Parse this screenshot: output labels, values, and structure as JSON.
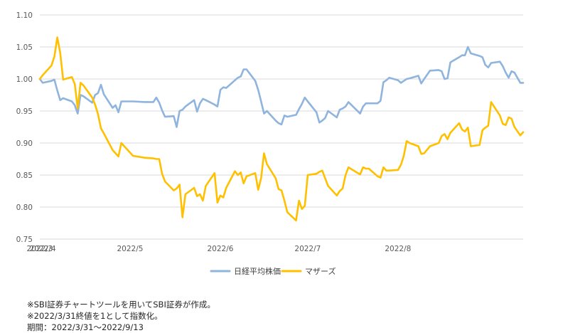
{
  "chart_data": {
    "type": "line",
    "title": "",
    "xlabel": "",
    "ylabel": "",
    "ylim": [
      0.75,
      1.1
    ],
    "yticks": [
      "1.10",
      "1.05",
      "1.00",
      "0.95",
      "0.90",
      "0.85",
      "0.80",
      "0.75"
    ],
    "xticks": [
      "2022/3",
      "2022/4",
      "2022/5",
      "2022/6",
      "2022/7",
      "2022/8"
    ],
    "grid": "horizontal",
    "legend_position": "bottom",
    "series": [
      {
        "name": "日経平均株価",
        "color": "#8FB4DE",
        "points": [
          [
            "2022/3/31",
            1.0
          ],
          [
            "2022/4/1",
            0.994
          ],
          [
            "2022/4/4",
            0.997
          ],
          [
            "2022/4/5",
            0.999
          ],
          [
            "2022/4/6",
            0.982
          ],
          [
            "2022/4/7",
            0.967
          ],
          [
            "2022/4/8",
            0.97
          ],
          [
            "2022/4/11",
            0.965
          ],
          [
            "2022/4/12",
            0.959
          ],
          [
            "2022/4/13",
            0.946
          ],
          [
            "2022/4/14",
            0.975
          ],
          [
            "2022/4/15",
            0.973
          ],
          [
            "2022/4/18",
            0.963
          ],
          [
            "2022/4/19",
            0.975
          ],
          [
            "2022/4/20",
            0.978
          ],
          [
            "2022/4/21",
            0.991
          ],
          [
            "2022/4/22",
            0.976
          ],
          [
            "2022/4/25",
            0.955
          ],
          [
            "2022/4/26",
            0.959
          ],
          [
            "2022/4/27",
            0.948
          ],
          [
            "2022/4/28",
            0.965
          ],
          [
            "2022/5/2",
            0.965
          ],
          [
            "2022/5/6",
            0.964
          ],
          [
            "2022/5/9",
            0.964
          ],
          [
            "2022/5/10",
            0.971
          ],
          [
            "2022/5/11",
            0.963
          ],
          [
            "2022/5/12",
            0.951
          ],
          [
            "2022/5/13",
            0.941
          ],
          [
            "2022/5/16",
            0.942
          ],
          [
            "2022/5/17",
            0.925
          ],
          [
            "2022/5/18",
            0.95
          ],
          [
            "2022/5/19",
            0.952
          ],
          [
            "2022/5/20",
            0.957
          ],
          [
            "2022/5/23",
            0.967
          ],
          [
            "2022/5/24",
            0.949
          ],
          [
            "2022/5/25",
            0.962
          ],
          [
            "2022/5/26",
            0.969
          ],
          [
            "2022/5/27",
            0.967
          ],
          [
            "2022/5/30",
            0.96
          ],
          [
            "2022/5/31",
            0.957
          ],
          [
            "2022/6/1",
            0.983
          ],
          [
            "2022/6/2",
            0.987
          ],
          [
            "2022/6/3",
            0.986
          ],
          [
            "2022/6/6",
            0.998
          ],
          [
            "2022/6/7",
            1.002
          ],
          [
            "2022/6/8",
            1.004
          ],
          [
            "2022/6/9",
            1.015
          ],
          [
            "2022/6/10",
            1.015
          ],
          [
            "2022/6/13",
            0.997
          ],
          [
            "2022/6/14",
            0.983
          ],
          [
            "2022/6/15",
            0.965
          ],
          [
            "2022/6/16",
            0.946
          ],
          [
            "2022/6/17",
            0.95
          ],
          [
            "2022/6/20",
            0.935
          ],
          [
            "2022/6/21",
            0.931
          ],
          [
            "2022/6/22",
            0.929
          ],
          [
            "2022/6/23",
            0.943
          ],
          [
            "2022/6/24",
            0.941
          ],
          [
            "2022/6/27",
            0.944
          ],
          [
            "2022/6/28",
            0.953
          ],
          [
            "2022/6/29",
            0.961
          ],
          [
            "2022/6/30",
            0.971
          ],
          [
            "2022/7/1",
            0.965
          ],
          [
            "2022/7/4",
            0.948
          ],
          [
            "2022/7/5",
            0.932
          ],
          [
            "2022/7/6",
            0.935
          ],
          [
            "2022/7/7",
            0.939
          ],
          [
            "2022/7/8",
            0.95
          ],
          [
            "2022/7/11",
            0.94
          ],
          [
            "2022/7/12",
            0.952
          ],
          [
            "2022/7/13",
            0.954
          ],
          [
            "2022/7/14",
            0.957
          ],
          [
            "2022/7/15",
            0.964
          ],
          [
            "2022/7/19",
            0.946
          ],
          [
            "2022/7/20",
            0.957
          ],
          [
            "2022/7/21",
            0.962
          ],
          [
            "2022/7/22",
            0.962
          ],
          [
            "2022/7/25",
            0.962
          ],
          [
            "2022/7/26",
            0.966
          ],
          [
            "2022/7/27",
            0.995
          ],
          [
            "2022/7/28",
            0.998
          ],
          [
            "2022/7/29",
            1.002
          ],
          [
            "2022/8/1",
            0.998
          ],
          [
            "2022/8/2",
            0.994
          ],
          [
            "2022/8/3",
            0.997
          ],
          [
            "2022/8/4",
            1.0
          ],
          [
            "2022/8/5",
            1.001
          ],
          [
            "2022/8/8",
            1.005
          ],
          [
            "2022/8/9",
            0.993
          ],
          [
            "2022/8/10",
            1.0
          ],
          [
            "2022/8/12",
            1.013
          ],
          [
            "2022/8/15",
            1.014
          ],
          [
            "2022/8/16",
            1.012
          ],
          [
            "2022/8/17",
            1.0
          ],
          [
            "2022/8/18",
            1.001
          ],
          [
            "2022/8/19",
            1.026
          ],
          [
            "2022/8/22",
            1.034
          ],
          [
            "2022/8/23",
            1.037
          ],
          [
            "2022/8/24",
            1.037
          ],
          [
            "2022/8/25",
            1.05
          ],
          [
            "2022/8/26",
            1.04
          ],
          [
            "2022/8/29",
            1.036
          ],
          [
            "2022/8/30",
            1.034
          ],
          [
            "2022/8/31",
            1.022
          ],
          [
            "2022/9/1",
            1.018
          ],
          [
            "2022/9/2",
            1.025
          ],
          [
            "2022/9/5",
            1.027
          ],
          [
            "2022/9/6",
            1.02
          ],
          [
            "2022/9/7",
            1.01
          ],
          [
            "2022/9/8",
            1.002
          ],
          [
            "2022/9/9",
            1.012
          ],
          [
            "2022/9/10",
            1.01
          ],
          [
            "2022/9/12",
            0.994
          ],
          [
            "2022/9/13",
            0.994
          ]
        ]
      },
      {
        "name": "マザーズ",
        "color": "#FFC000",
        "points": [
          [
            "2022/3/31",
            1.0
          ],
          [
            "2022/4/1",
            1.006
          ],
          [
            "2022/4/4",
            1.021
          ],
          [
            "2022/4/5",
            1.035
          ],
          [
            "2022/4/6",
            1.065
          ],
          [
            "2022/4/7",
            1.041
          ],
          [
            "2022/4/8",
            0.999
          ],
          [
            "2022/4/11",
            1.003
          ],
          [
            "2022/4/12",
            0.992
          ],
          [
            "2022/4/13",
            0.954
          ],
          [
            "2022/4/14",
            0.994
          ],
          [
            "2022/4/15",
            0.99
          ],
          [
            "2022/4/18",
            0.971
          ],
          [
            "2022/4/19",
            0.96
          ],
          [
            "2022/4/20",
            0.945
          ],
          [
            "2022/4/21",
            0.923
          ],
          [
            "2022/4/22",
            0.915
          ],
          [
            "2022/4/25",
            0.889
          ],
          [
            "2022/4/26",
            0.884
          ],
          [
            "2022/4/27",
            0.879
          ],
          [
            "2022/4/28",
            0.9
          ],
          [
            "2022/5/2",
            0.88
          ],
          [
            "2022/5/6",
            0.877
          ],
          [
            "2022/5/9",
            0.876
          ],
          [
            "2022/5/10",
            0.875
          ],
          [
            "2022/5/11",
            0.875
          ],
          [
            "2022/5/12",
            0.852
          ],
          [
            "2022/5/13",
            0.84
          ],
          [
            "2022/5/16",
            0.826
          ],
          [
            "2022/5/17",
            0.829
          ],
          [
            "2022/5/18",
            0.835
          ],
          [
            "2022/5/19",
            0.784
          ],
          [
            "2022/5/20",
            0.82
          ],
          [
            "2022/5/23",
            0.83
          ],
          [
            "2022/5/24",
            0.817
          ],
          [
            "2022/5/25",
            0.82
          ],
          [
            "2022/5/26",
            0.81
          ],
          [
            "2022/5/27",
            0.833
          ],
          [
            "2022/5/30",
            0.853
          ],
          [
            "2022/5/31",
            0.807
          ],
          [
            "2022/6/1",
            0.818
          ],
          [
            "2022/6/2",
            0.815
          ],
          [
            "2022/6/3",
            0.83
          ],
          [
            "2022/6/6",
            0.856
          ],
          [
            "2022/6/7",
            0.85
          ],
          [
            "2022/6/8",
            0.854
          ],
          [
            "2022/6/9",
            0.837
          ],
          [
            "2022/6/10",
            0.848
          ],
          [
            "2022/6/13",
            0.853
          ],
          [
            "2022/6/14",
            0.827
          ],
          [
            "2022/6/15",
            0.845
          ],
          [
            "2022/6/16",
            0.884
          ],
          [
            "2022/6/17",
            0.867
          ],
          [
            "2022/6/20",
            0.845
          ],
          [
            "2022/6/21",
            0.828
          ],
          [
            "2022/6/22",
            0.826
          ],
          [
            "2022/6/23",
            0.81
          ],
          [
            "2022/6/24",
            0.792
          ],
          [
            "2022/6/27",
            0.779
          ],
          [
            "2022/6/28",
            0.81
          ],
          [
            "2022/6/29",
            0.797
          ],
          [
            "2022/6/30",
            0.802
          ],
          [
            "2022/7/1",
            0.85
          ],
          [
            "2022/7/4",
            0.852
          ],
          [
            "2022/7/5",
            0.855
          ],
          [
            "2022/7/6",
            0.857
          ],
          [
            "2022/7/7",
            0.845
          ],
          [
            "2022/7/8",
            0.833
          ],
          [
            "2022/7/11",
            0.818
          ],
          [
            "2022/7/12",
            0.825
          ],
          [
            "2022/7/13",
            0.829
          ],
          [
            "2022/7/14",
            0.85
          ],
          [
            "2022/7/15",
            0.862
          ],
          [
            "2022/7/19",
            0.851
          ],
          [
            "2022/7/20",
            0.862
          ],
          [
            "2022/7/21",
            0.86
          ],
          [
            "2022/7/22",
            0.86
          ],
          [
            "2022/7/25",
            0.848
          ],
          [
            "2022/7/26",
            0.846
          ],
          [
            "2022/7/27",
            0.862
          ],
          [
            "2022/7/28",
            0.857
          ],
          [
            "2022/7/29",
            0.857
          ],
          [
            "2022/8/1",
            0.858
          ],
          [
            "2022/8/2",
            0.866
          ],
          [
            "2022/8/3",
            0.88
          ],
          [
            "2022/8/4",
            0.903
          ],
          [
            "2022/8/5",
            0.9
          ],
          [
            "2022/8/8",
            0.895
          ],
          [
            "2022/8/9",
            0.883
          ],
          [
            "2022/8/10",
            0.884
          ],
          [
            "2022/8/12",
            0.895
          ],
          [
            "2022/8/15",
            0.9
          ],
          [
            "2022/8/16",
            0.911
          ],
          [
            "2022/8/17",
            0.914
          ],
          [
            "2022/8/18",
            0.906
          ],
          [
            "2022/8/19",
            0.916
          ],
          [
            "2022/8/22",
            0.931
          ],
          [
            "2022/8/23",
            0.921
          ],
          [
            "2022/8/24",
            0.918
          ],
          [
            "2022/8/25",
            0.924
          ],
          [
            "2022/8/26",
            0.895
          ],
          [
            "2022/8/29",
            0.897
          ],
          [
            "2022/8/30",
            0.92
          ],
          [
            "2022/8/31",
            0.924
          ],
          [
            "2022/9/1",
            0.927
          ],
          [
            "2022/9/2",
            0.964
          ],
          [
            "2022/9/5",
            0.943
          ],
          [
            "2022/9/6",
            0.93
          ],
          [
            "2022/9/7",
            0.928
          ],
          [
            "2022/9/8",
            0.94
          ],
          [
            "2022/9/9",
            0.938
          ],
          [
            "2022/9/10",
            0.925
          ],
          [
            "2022/9/12",
            0.912
          ],
          [
            "2022/9/13",
            0.917
          ]
        ]
      }
    ]
  },
  "notes": [
    "※SBI証券チャートツールを用いてSBI証券が作成。",
    "※2022/3/31終値を1として指数化。",
    "期間：2022/3/31～2022/9/13"
  ]
}
